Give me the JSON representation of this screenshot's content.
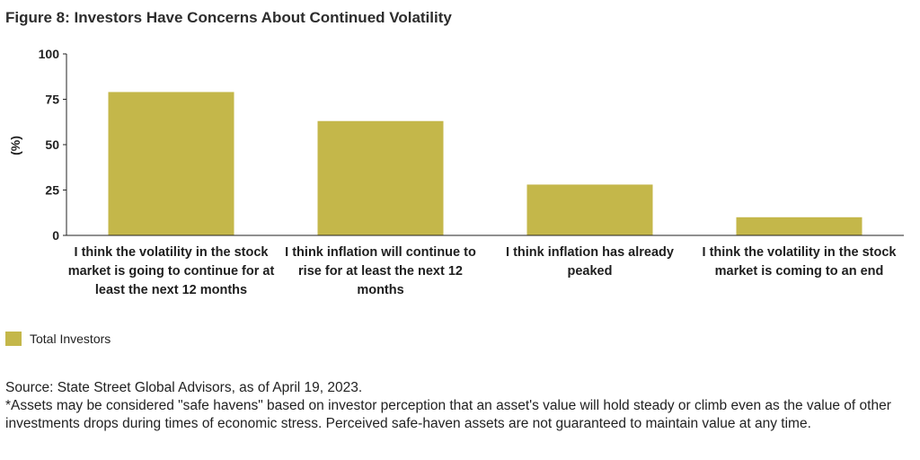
{
  "title": "Figure 8: Investors Have Concerns About Continued Volatility",
  "colors": {
    "bar": "#C4B74A",
    "axis": "#222222"
  },
  "chart_data": {
    "type": "bar",
    "categories": [
      "I think the volatility in the stock market is going to continue for at least the next 12 months",
      "I think inflation will continue to rise for at least the next 12 months",
      "I think inflation has already peaked",
      "I think the volatility in the stock market is coming to an end"
    ],
    "series": [
      {
        "name": "Total Investors",
        "values": [
          79,
          63,
          28,
          10
        ]
      }
    ],
    "ylabel": "(%)",
    "ylim": [
      0,
      100
    ],
    "yticks": [
      "0",
      "25",
      "50",
      "75",
      "100"
    ],
    "grid": false,
    "legend": "bottom-left"
  },
  "legend_label": "Total Investors",
  "source": "Source: State Street Global Advisors, as of April 19, 2023.",
  "note": "*Assets may be considered \"safe havens\" based on investor perception that an asset's value will hold steady or climb even as the value of other investments drops during times of economic stress. Perceived safe-haven assets are not guaranteed to maintain value at any time."
}
